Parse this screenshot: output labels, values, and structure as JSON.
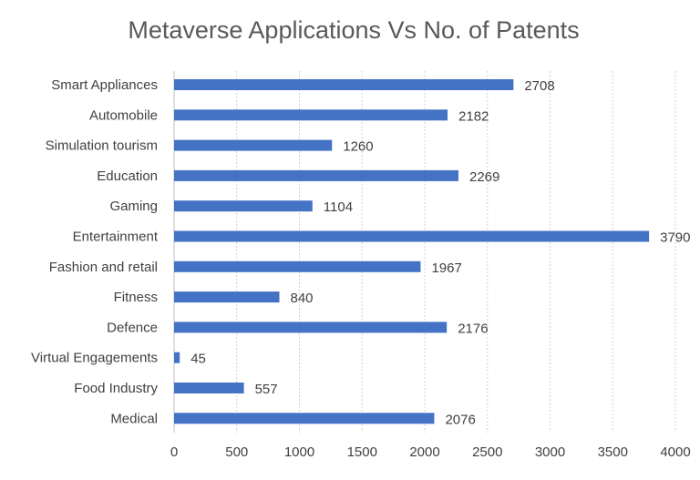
{
  "chart_data": {
    "type": "bar",
    "orientation": "horizontal",
    "title": "Metaverse Applications Vs No. of Patents",
    "xlabel": "",
    "ylabel": "",
    "categories": [
      "Smart Appliances",
      "Automobile",
      "Simulation tourism",
      "Education",
      "Gaming",
      "Entertainment",
      "Fashion and retail",
      "Fitness",
      "Defence",
      "Virtual Engagements",
      "Food Industry",
      "Medical"
    ],
    "values": [
      2708,
      2182,
      1260,
      2269,
      1104,
      3790,
      1967,
      840,
      2176,
      45,
      557,
      2076
    ],
    "xlim": [
      0,
      4000
    ],
    "xticks": [
      0,
      500,
      1000,
      1500,
      2000,
      2500,
      3000,
      3500,
      4000
    ],
    "grid": true,
    "data_labels": true,
    "legend": "none",
    "colors": {
      "bar": "#4472c4"
    }
  }
}
